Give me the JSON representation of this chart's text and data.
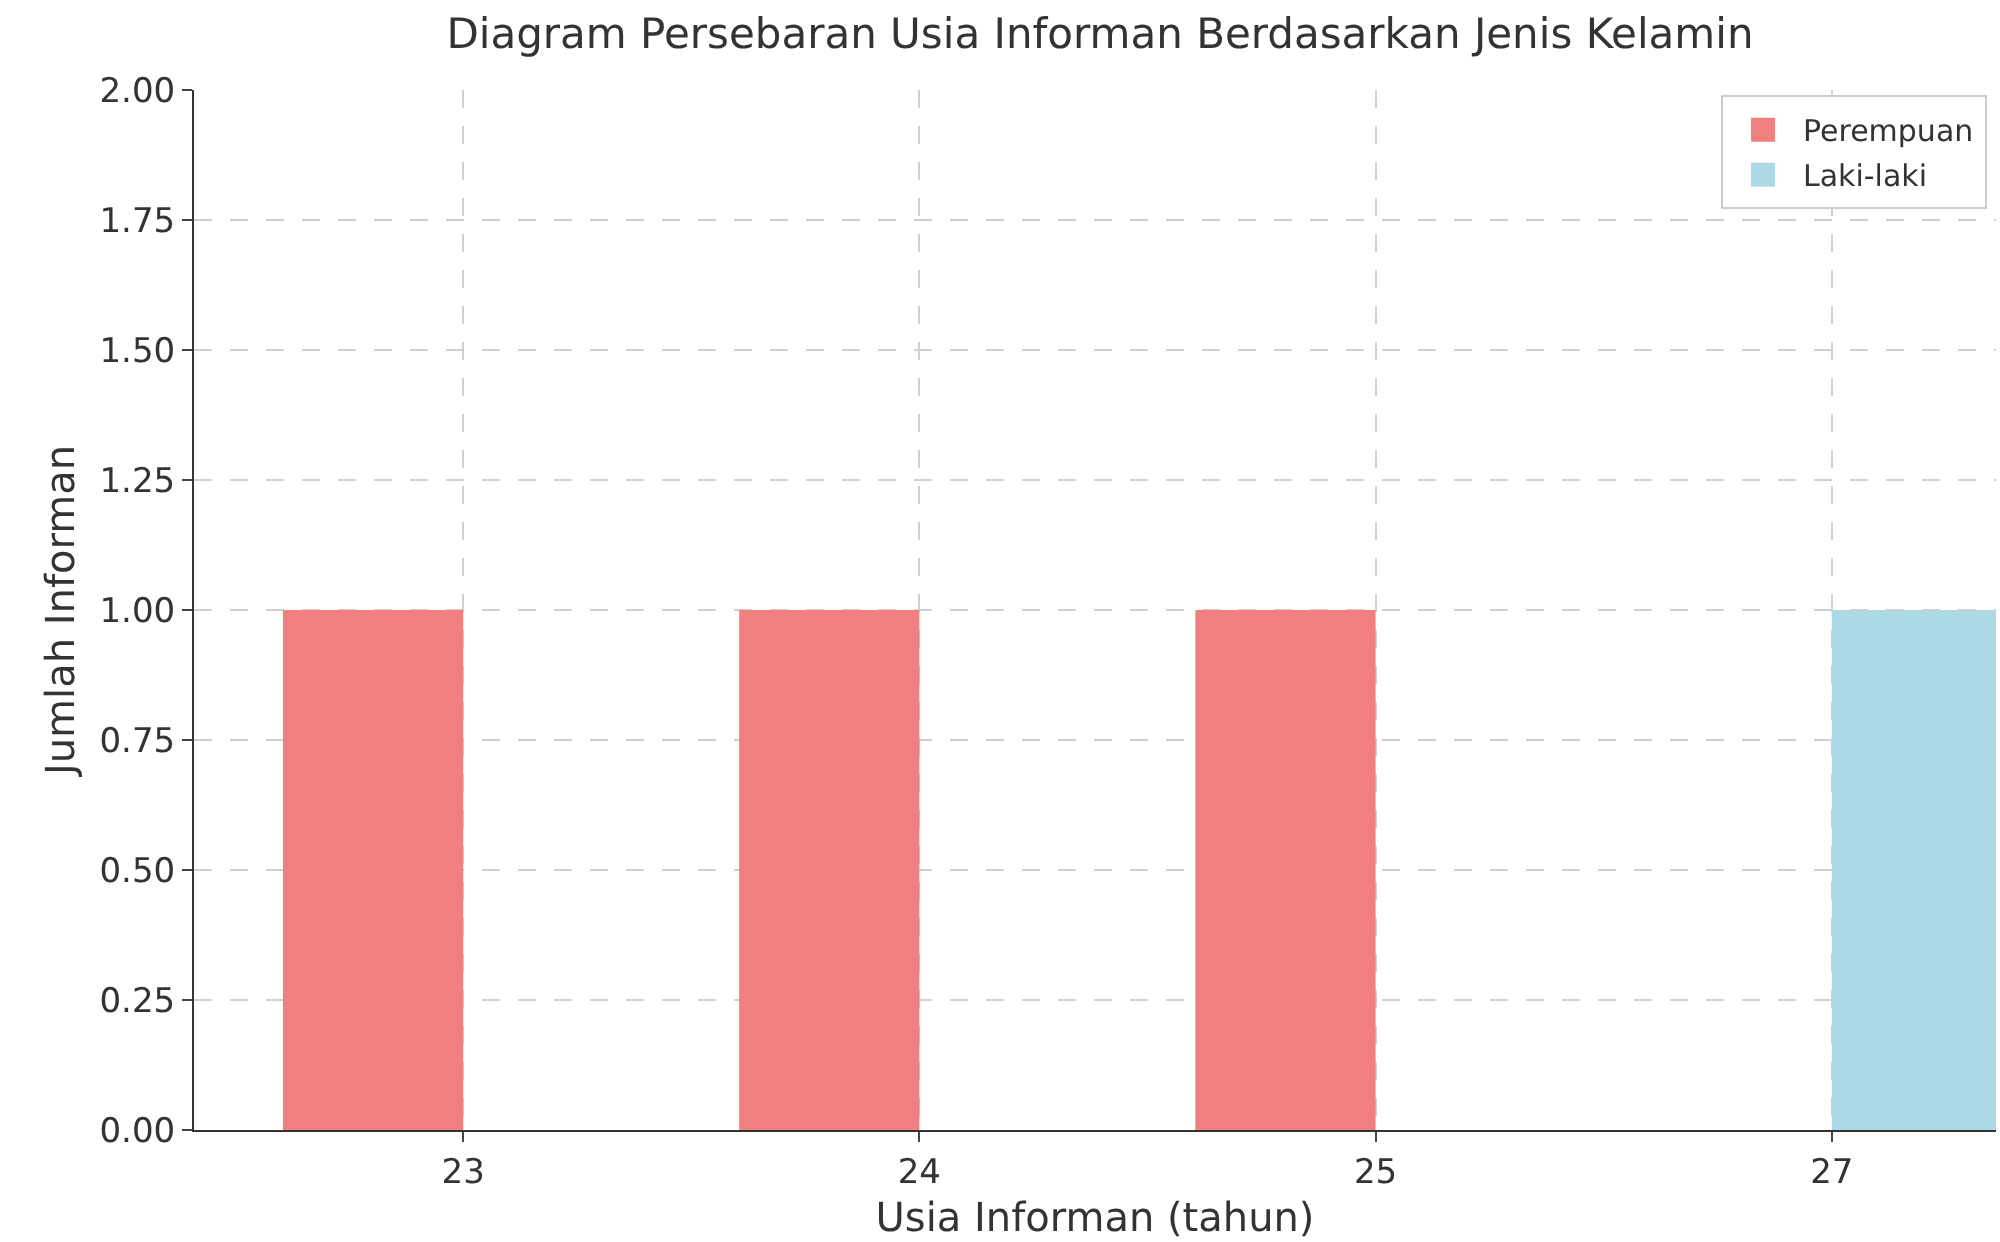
{
  "chart_data": {
    "type": "bar",
    "title": "Diagram Persebaran Usia Informan Berdasarkan Jenis Kelamin",
    "xlabel": "Usia Informan (tahun)",
    "ylabel": "Jumlah Informan",
    "categories": [
      "23",
      "24",
      "25",
      "27"
    ],
    "series": [
      {
        "name": "Perempuan",
        "color": "#f08080",
        "values": [
          1,
          1,
          1,
          0
        ]
      },
      {
        "name": "Laki-laki",
        "color": "#add8e6",
        "values": [
          0,
          0,
          0,
          1
        ]
      }
    ],
    "ylim": [
      0,
      2
    ],
    "yticks": [
      {
        "value": 0,
        "label": "0.00"
      },
      {
        "value": 0.25,
        "label": "0.25"
      },
      {
        "value": 0.5,
        "label": "0.50"
      },
      {
        "value": 0.75,
        "label": "0.75"
      },
      {
        "value": 1,
        "label": "1.00"
      },
      {
        "value": 1.25,
        "label": "1.25"
      },
      {
        "value": 1.5,
        "label": "1.50"
      },
      {
        "value": 1.75,
        "label": "1.75"
      },
      {
        "value": 2,
        "label": "2.00"
      }
    ],
    "grid": true,
    "legend": "top right"
  }
}
